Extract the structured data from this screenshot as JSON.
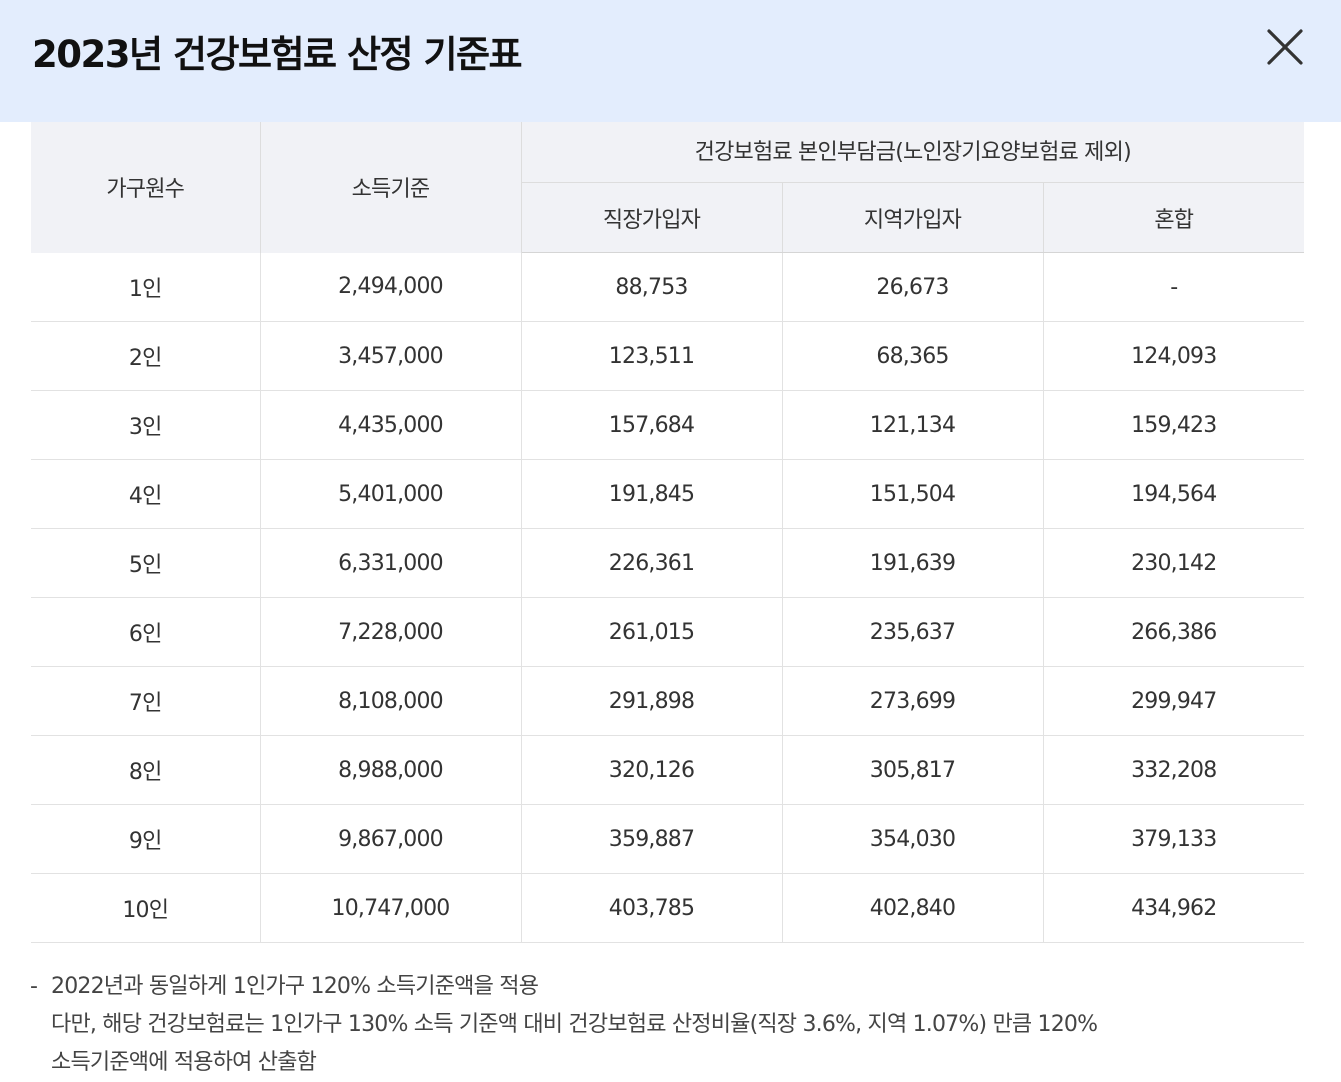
{
  "header": {
    "title": "2023년 건강보험료 산정 기준표",
    "close_icon": "close-icon"
  },
  "table": {
    "headers": {
      "household": "가구원수",
      "income": "소득기준",
      "group": "건강보험료 본인부담금(노인장기요양보험료 제외)",
      "employee": "직장가입자",
      "regional": "지역가입자",
      "mixed": "혼합"
    },
    "rows": [
      [
        "1인",
        "2,494,000",
        "88,753",
        "26,673",
        "-"
      ],
      [
        "2인",
        "3,457,000",
        "123,511",
        "68,365",
        "124,093"
      ],
      [
        "3인",
        "4,435,000",
        "157,684",
        "121,134",
        "159,423"
      ],
      [
        "4인",
        "5,401,000",
        "191,845",
        "151,504",
        "194,564"
      ],
      [
        "5인",
        "6,331,000",
        "226,361",
        "191,639",
        "230,142"
      ],
      [
        "6인",
        "7,228,000",
        "261,015",
        "235,637",
        "266,386"
      ],
      [
        "7인",
        "8,108,000",
        "291,898",
        "273,699",
        "299,947"
      ],
      [
        "8인",
        "8,988,000",
        "320,126",
        "305,817",
        "332,208"
      ],
      [
        "9인",
        "9,867,000",
        "359,887",
        "354,030",
        "379,133"
      ],
      [
        "10인",
        "10,747,000",
        "403,785",
        "402,840",
        "434,962"
      ]
    ]
  },
  "notes": {
    "bullet": "-",
    "line1": "2022년과 동일하게 1인가구 120% 소득기준액을 적용",
    "line2": "다만, 해당 건강보험료는 1인가구 130% 소득 기준액 대비 건강보험료 산정비율(직장 3.6%, 지역 1.07%) 만큼 120%",
    "line3": "소득기준액에 적용하여 산출함"
  },
  "colors": {
    "header_bg": "#e3edfd",
    "table_header_bg": "#f1f2f6"
  }
}
